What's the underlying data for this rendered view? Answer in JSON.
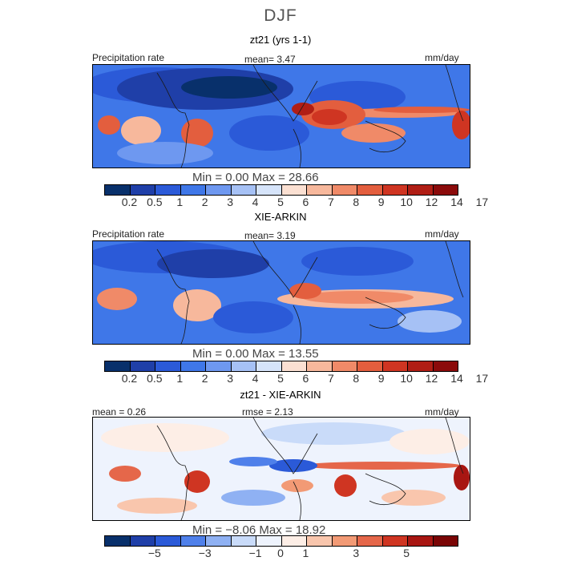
{
  "season": "DJF",
  "palette": {
    "precip": [
      "#08306b",
      "#1f3fa8",
      "#2b5ad8",
      "#3f77e8",
      "#6e98f0",
      "#a6c1f5",
      "#d6e4fa",
      "#fbe0d2",
      "#f7b89c",
      "#f08a68",
      "#e35e3e",
      "#cf3522",
      "#b01e15",
      "#8b0b0b"
    ],
    "diff": [
      "#08306b",
      "#1f3fa8",
      "#2b5ad8",
      "#4f80ea",
      "#8fb1f3",
      "#c9dbf9",
      "#eef3fd",
      "#fdeee6",
      "#f9c6ad",
      "#f29a75",
      "#e5674a",
      "#cf3522",
      "#a81612",
      "#7a0505"
    ],
    "coast": "#1a1a1a"
  },
  "panels": [
    {
      "title": "zt21 (yrs 1-1)",
      "left_label": "Precipitation rate",
      "center_label": "mean=    3.47",
      "right_label": "mm/day",
      "minmax": "Min =    0.00  Max =   28.66",
      "colorbar_ticks": [
        "0.2",
        "0.5",
        "1",
        "2",
        "3",
        "4",
        "5",
        "6",
        "7",
        "8",
        "9",
        "10",
        "12",
        "14",
        "17"
      ]
    },
    {
      "title": "XIE-ARKIN",
      "left_label": "Precipitation rate",
      "center_label": "mean=    3.19",
      "right_label": "mm/day",
      "minmax": "Min =    0.00  Max =   13.55",
      "colorbar_ticks": [
        "0.2",
        "0.5",
        "1",
        "2",
        "3",
        "4",
        "5",
        "6",
        "7",
        "8",
        "9",
        "10",
        "12",
        "14",
        "17"
      ]
    },
    {
      "title": "zt21 - XIE-ARKIN",
      "left_label": "mean =    0.26",
      "center_label": "rmse =    2.13",
      "right_label": "mm/day",
      "minmax": "Min =   −8.06  Max =   18.92",
      "colorbar_ticks": [
        "−5",
        "−3",
        "−1",
        "0",
        "1",
        "3",
        "5"
      ]
    }
  ]
}
